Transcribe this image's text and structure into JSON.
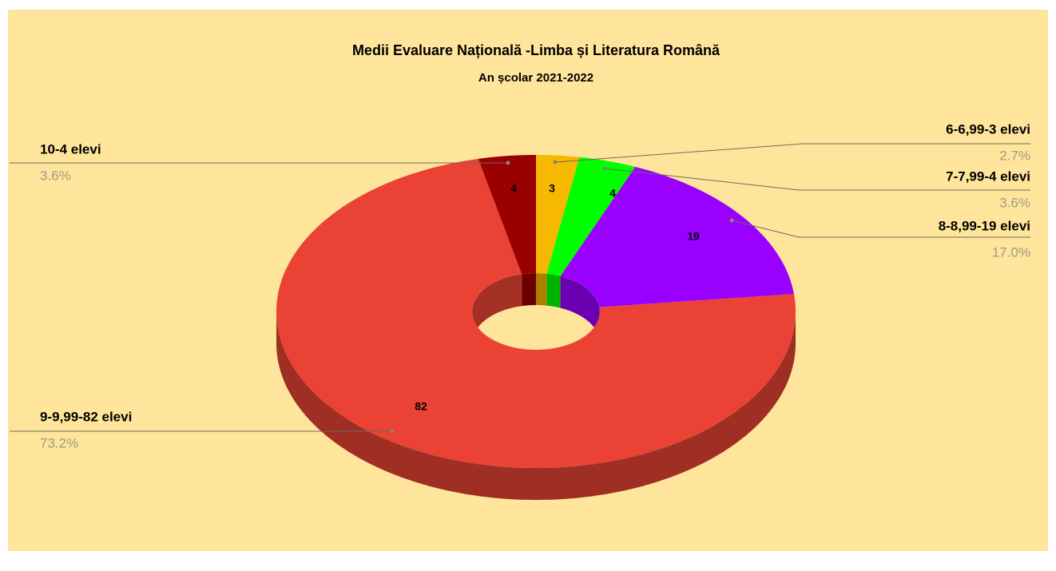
{
  "chart_data": {
    "type": "pie3d-donut",
    "title": "Medii Evaluare Națională -Limba și Literatura Română",
    "subtitle": "An școlar 2021-2022",
    "categories": [
      "6-6,99-3 elevi",
      "7-7,99-4 elevi",
      "8-8,99-19 elevi",
      "9-9,99-82 elevi",
      "10-4 elevi"
    ],
    "values": [
      3,
      4,
      19,
      82,
      4
    ],
    "percent_labels": [
      "2.7%",
      "3.6%",
      "17.0%",
      "73.2%",
      "3.6%"
    ],
    "colors": [
      "#f6b800",
      "#00ff00",
      "#9900ff",
      "#ea4335",
      "#990000"
    ]
  }
}
